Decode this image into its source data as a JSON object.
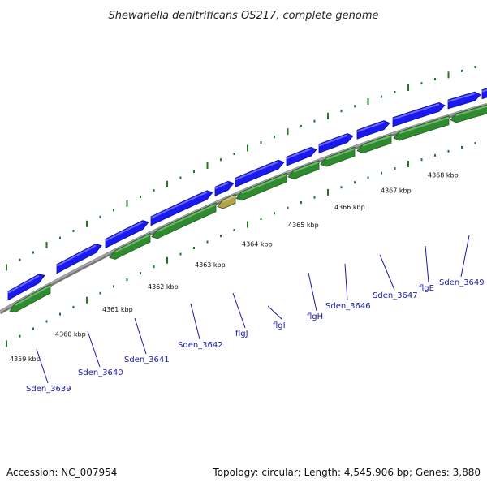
{
  "title": "Shewanella denitrificans OS217, complete genome",
  "accession": "Accession: NC_007954",
  "summary": "Topology: circular; Length: 4,545,906 bp; Genes: 3,880",
  "colors": {
    "background": "#ffffff",
    "forward_gene": "#1a1af0",
    "reverse_gene": "#2e8b2e",
    "highlight_gene": "#b5a24a",
    "backbone": "#8c8c8c",
    "tick": "#1e7a1e",
    "gene_label": "#1a1aa8"
  },
  "scale_labels": [
    "4359 kbp",
    "4360 kbp",
    "4361 kbp",
    "4362 kbp",
    "4363 kbp",
    "4364 kbp",
    "4365 kbp",
    "4366 kbp",
    "4367 kbp",
    "4368 kbp"
  ],
  "gene_labels": [
    "Sden_3639",
    "Sden_3640",
    "Sden_3641",
    "Sden_3642",
    "flgJ",
    "flgI",
    "flgH",
    "Sden_3646",
    "Sden_3647",
    "flgE",
    "Sden_3649"
  ]
}
